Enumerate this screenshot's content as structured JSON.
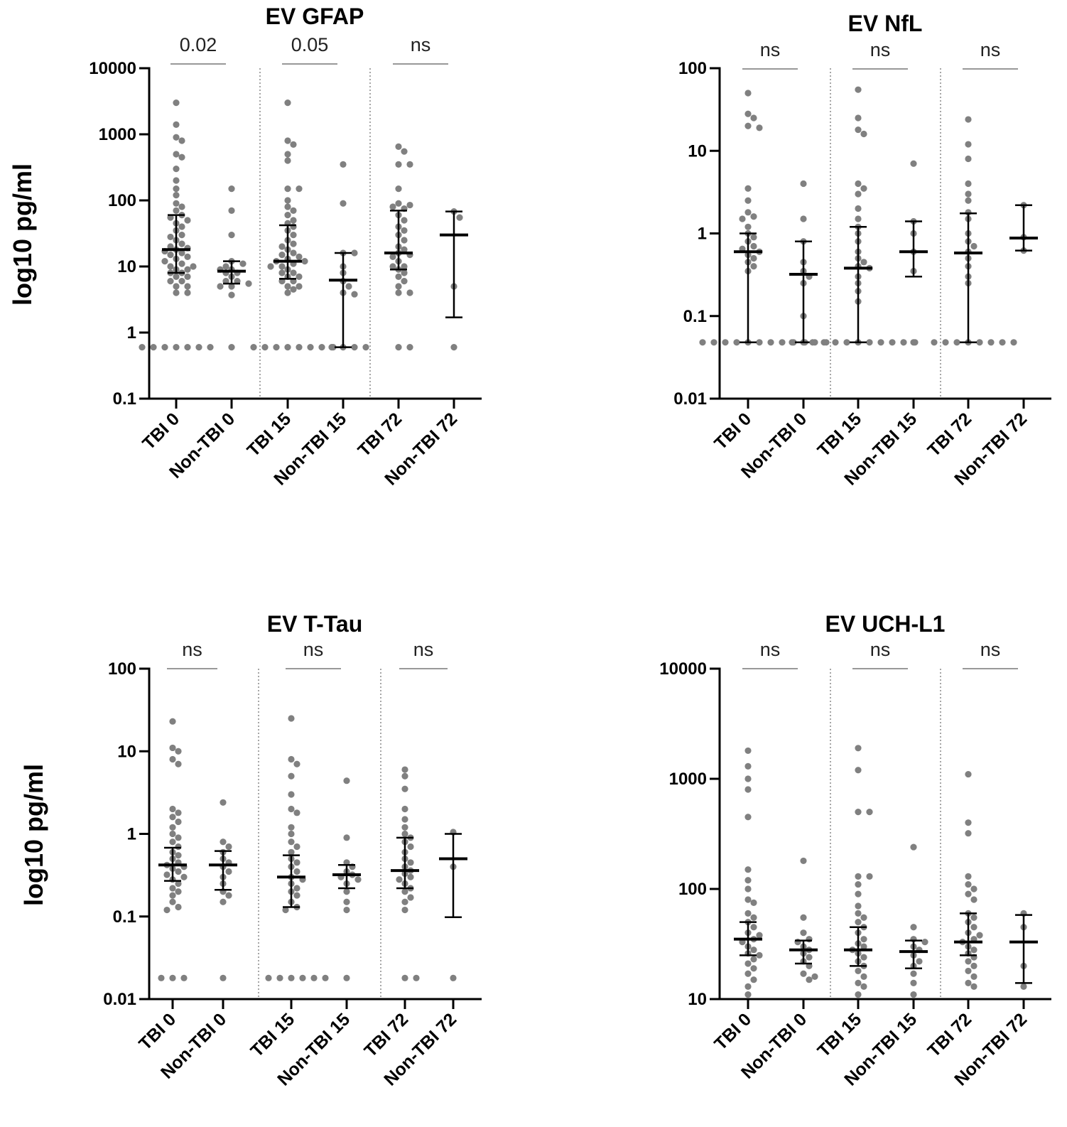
{
  "chart_data": [
    {
      "type": "scatter",
      "title": "EV GFAP",
      "ylabel": "log10 pg/ml",
      "yscale": "log",
      "ylim": [
        0.1,
        10000
      ],
      "yticks": [
        "0.1",
        "1",
        "10",
        "100",
        "1000",
        "10000"
      ],
      "categories": [
        "TBI 0",
        "Non-TBI 0",
        "TBI 15",
        "Non-TBI 15",
        "TBI 72",
        "Non-TBI 72"
      ],
      "comparisons": [
        "0.02",
        "0.05",
        "ns"
      ],
      "groups": [
        {
          "median": 18,
          "q1": 8,
          "q3": 60,
          "points": [
            3000,
            1400,
            900,
            800,
            500,
            450,
            300,
            200,
            150,
            120,
            90,
            80,
            70,
            60,
            55,
            50,
            45,
            40,
            35,
            30,
            28,
            25,
            22,
            20,
            19,
            18,
            17,
            16,
            15,
            14,
            13,
            12,
            11,
            10,
            10,
            9,
            9,
            8,
            8,
            7,
            7,
            6,
            6,
            5,
            5,
            4,
            4,
            0.6,
            0.6,
            0.6,
            0.6,
            0.6,
            0.6,
            0.6
          ]
        },
        {
          "median": 8.5,
          "q1": 5.5,
          "q3": 12,
          "points": [
            150,
            70,
            30,
            12,
            11,
            10,
            9,
            9,
            8,
            8,
            7,
            6,
            6,
            5.5,
            5,
            5,
            3.7,
            0.6
          ]
        },
        {
          "median": 12,
          "q1": 6.5,
          "q3": 42,
          "points": [
            3000,
            800,
            700,
            500,
            400,
            150,
            150,
            100,
            80,
            70,
            60,
            50,
            45,
            40,
            35,
            30,
            25,
            22,
            20,
            18,
            16,
            15,
            14,
            13,
            12,
            12,
            11,
            10,
            10,
            9,
            8,
            8,
            7,
            7,
            6,
            6,
            5,
            5,
            4.5,
            4,
            0.6,
            0.6,
            0.6,
            0.6,
            0.6,
            0.6,
            0.6,
            0.6
          ]
        },
        {
          "median": 6.2,
          "q1": 0.6,
          "q3": 16,
          "points": [
            350,
            90,
            16,
            16,
            10,
            8,
            6,
            5,
            4,
            3.8,
            0.6,
            0.6,
            0.6,
            0.6
          ]
        },
        {
          "median": 16,
          "q1": 9,
          "q3": 70,
          "points": [
            650,
            550,
            350,
            350,
            150,
            90,
            85,
            80,
            75,
            60,
            50,
            40,
            35,
            30,
            25,
            20,
            18,
            16,
            15,
            14,
            12,
            10,
            10,
            9,
            8,
            7,
            6,
            5,
            4,
            4,
            0.6,
            0.6
          ]
        },
        {
          "median": 30,
          "q1": 1.7,
          "q3": 68,
          "points": [
            68,
            55,
            5,
            0.6
          ]
        }
      ]
    },
    {
      "type": "scatter",
      "title": "EV NfL",
      "ylabel": "",
      "yscale": "log",
      "ylim": [
        0.01,
        100
      ],
      "yticks": [
        "0.01",
        "0.1",
        "1",
        "10",
        "100"
      ],
      "categories": [
        "TBI 0",
        "Non-TBI 0",
        "TBI 15",
        "Non-TBI 15",
        "TBI 72",
        "Non-TBI 72"
      ],
      "comparisons": [
        "ns",
        "ns",
        "ns"
      ],
      "groups": [
        {
          "median": 0.6,
          "q1": 0.048,
          "q3": 1.0,
          "points": [
            50,
            28,
            25,
            20,
            19,
            3.5,
            2.5,
            1.8,
            1.6,
            1.5,
            1.2,
            1.0,
            0.9,
            0.8,
            0.7,
            0.65,
            0.6,
            0.55,
            0.5,
            0.45,
            0.4,
            0.35,
            0.048,
            0.048,
            0.048,
            0.048,
            0.048,
            0.048,
            0.048,
            0.048,
            0.048,
            0.048
          ]
        },
        {
          "median": 0.32,
          "q1": 0.048,
          "q3": 0.8,
          "points": [
            4,
            1.5,
            0.8,
            0.45,
            0.35,
            0.3,
            0.25,
            0.1,
            0.048,
            0.048,
            0.048,
            0.048
          ]
        },
        {
          "median": 0.38,
          "q1": 0.048,
          "q3": 1.2,
          "points": [
            55,
            25,
            18,
            16,
            4,
            3.5,
            3,
            2,
            1.5,
            1.2,
            1,
            0.8,
            0.6,
            0.5,
            0.45,
            0.4,
            0.38,
            0.3,
            0.25,
            0.2,
            0.15,
            0.048,
            0.048,
            0.048,
            0.048,
            0.048,
            0.048,
            0.048,
            0.048,
            0.048,
            0.048
          ]
        },
        {
          "median": 0.6,
          "q1": 0.3,
          "q3": 1.4,
          "points": [
            7,
            1.4,
            1.0,
            0.6,
            0.35,
            0.048
          ]
        },
        {
          "median": 0.58,
          "q1": 0.048,
          "q3": 1.75,
          "points": [
            24,
            12,
            8,
            4,
            3,
            2.5,
            1.8,
            1.5,
            1,
            0.8,
            0.7,
            0.6,
            0.5,
            0.4,
            0.3,
            0.25,
            0.048,
            0.048,
            0.048,
            0.048,
            0.048,
            0.048,
            0.048,
            0.048
          ]
        },
        {
          "median": 0.88,
          "q1": 0.62,
          "q3": 2.2,
          "points": [
            2.2,
            0.9,
            0.62
          ]
        }
      ]
    },
    {
      "type": "scatter",
      "title": "EV T-Tau",
      "ylabel": "log10 pg/ml",
      "yscale": "log",
      "ylim": [
        0.01,
        100
      ],
      "yticks": [
        "0.01",
        "0.1",
        "1",
        "10",
        "100"
      ],
      "categories": [
        "TBI 0",
        "Non-TBI 0",
        "TBI 15",
        "Non-TBI 15",
        "TBI 72",
        "Non-TBI 72"
      ],
      "comparisons": [
        "ns",
        "ns",
        "ns"
      ],
      "groups": [
        {
          "median": 0.42,
          "q1": 0.27,
          "q3": 0.68,
          "points": [
            23,
            11,
            10,
            8,
            7,
            2,
            1.8,
            1.6,
            1.4,
            1.2,
            1,
            0.9,
            0.8,
            0.7,
            0.6,
            0.55,
            0.5,
            0.45,
            0.42,
            0.4,
            0.38,
            0.35,
            0.32,
            0.3,
            0.28,
            0.25,
            0.22,
            0.2,
            0.18,
            0.15,
            0.13,
            0.12,
            0.018,
            0.018,
            0.018
          ]
        },
        {
          "median": 0.42,
          "q1": 0.21,
          "q3": 0.62,
          "points": [
            2.4,
            0.8,
            0.7,
            0.6,
            0.5,
            0.45,
            0.4,
            0.35,
            0.3,
            0.25,
            0.2,
            0.18,
            0.15,
            0.018
          ]
        },
        {
          "median": 0.3,
          "q1": 0.13,
          "q3": 0.55,
          "points": [
            25,
            8,
            7,
            5,
            3,
            2,
            1.8,
            1.2,
            1,
            0.8,
            0.7,
            0.6,
            0.5,
            0.45,
            0.4,
            0.35,
            0.3,
            0.28,
            0.25,
            0.22,
            0.2,
            0.18,
            0.15,
            0.13,
            0.12,
            0.018,
            0.018,
            0.018,
            0.018,
            0.018,
            0.018
          ]
        },
        {
          "median": 0.32,
          "q1": 0.22,
          "q3": 0.42,
          "points": [
            4.4,
            0.9,
            0.45,
            0.4,
            0.35,
            0.32,
            0.3,
            0.28,
            0.25,
            0.2,
            0.15,
            0.12,
            0.018
          ]
        },
        {
          "median": 0.36,
          "q1": 0.22,
          "q3": 0.9,
          "points": [
            6,
            5,
            3.5,
            2,
            1.5,
            1.2,
            1,
            0.9,
            0.8,
            0.7,
            0.6,
            0.5,
            0.45,
            0.4,
            0.36,
            0.33,
            0.3,
            0.28,
            0.25,
            0.22,
            0.2,
            0.17,
            0.15,
            0.12,
            0.018,
            0.018
          ]
        },
        {
          "median": 0.5,
          "q1": 0.098,
          "q3": 1.0,
          "points": [
            1.05,
            0.4,
            0.018
          ]
        }
      ]
    },
    {
      "type": "scatter",
      "title": "EV UCH-L1",
      "ylabel": "",
      "yscale": "log",
      "ylim": [
        10,
        10000
      ],
      "yticks": [
        "10",
        "100",
        "1000",
        "10000"
      ],
      "categories": [
        "TBI 0",
        "Non-TBI 0",
        "TBI 15",
        "Non-TBI 15",
        "TBI 72",
        "Non-TBI 72"
      ],
      "comparisons": [
        "ns",
        "ns",
        "ns"
      ],
      "groups": [
        {
          "median": 35,
          "q1": 25,
          "q3": 50,
          "points": [
            1800,
            1300,
            1000,
            800,
            450,
            150,
            120,
            100,
            80,
            75,
            60,
            55,
            50,
            45,
            40,
            38,
            35,
            33,
            30,
            28,
            26,
            25,
            23,
            21,
            19,
            17,
            15,
            13,
            11
          ]
        },
        {
          "median": 28,
          "q1": 21,
          "q3": 34,
          "points": [
            180,
            55,
            40,
            35,
            33,
            30,
            28,
            26,
            24,
            22,
            20,
            17,
            16,
            15
          ]
        },
        {
          "median": 28,
          "q1": 20,
          "q3": 45,
          "points": [
            1900,
            1200,
            500,
            500,
            130,
            130,
            110,
            90,
            70,
            60,
            55,
            50,
            45,
            40,
            35,
            32,
            30,
            28,
            26,
            24,
            22,
            20,
            18,
            16,
            14,
            13,
            11
          ]
        },
        {
          "median": 27,
          "q1": 19,
          "q3": 34,
          "points": [
            240,
            45,
            35,
            33,
            30,
            28,
            25,
            22,
            20,
            17,
            14,
            11
          ]
        },
        {
          "median": 33,
          "q1": 25,
          "q3": 60,
          "points": [
            1100,
            400,
            320,
            130,
            110,
            100,
            90,
            80,
            60,
            55,
            50,
            45,
            40,
            38,
            35,
            33,
            30,
            28,
            26,
            24,
            22,
            20,
            18,
            16,
            14,
            13
          ]
        },
        {
          "median": 33,
          "q1": 14,
          "q3": 58,
          "points": [
            60,
            45,
            20,
            13
          ]
        }
      ]
    }
  ],
  "colors": {
    "points": "#808080",
    "bars": "#000000",
    "significance_line": "#777777",
    "separator": "#888888"
  },
  "grid": false
}
